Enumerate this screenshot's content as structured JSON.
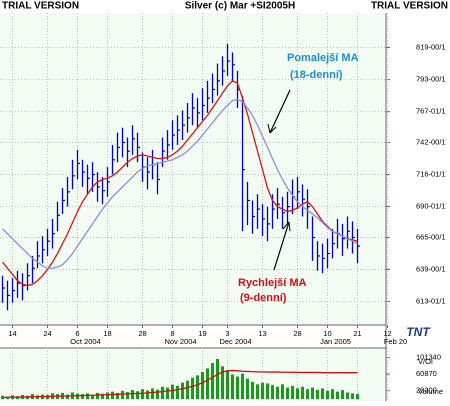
{
  "header": {
    "watermark_left": "TRIAL VERSION",
    "watermark_right": "TRIAL VERSION"
  },
  "chart_data": {
    "type": "ohlc",
    "title": "Silver (c) Mar +SI2005H",
    "color": "#0000cc",
    "grid": true,
    "categories": [
      null,
      null,
      "14",
      null,
      null,
      null,
      null,
      null,
      null,
      "24",
      null,
      null,
      null,
      null,
      null,
      "6",
      null,
      null,
      null,
      null,
      null,
      "18",
      null,
      null,
      null,
      null,
      null,
      null,
      "28",
      null,
      null,
      null,
      null,
      null,
      "8",
      null,
      null,
      null,
      null,
      null,
      "19",
      null,
      null,
      null,
      null,
      "3",
      null,
      null,
      null,
      null,
      null,
      null,
      "13",
      null,
      null,
      null,
      null,
      null,
      null,
      "28",
      null,
      null,
      null,
      null,
      null,
      "10",
      null,
      null,
      null,
      null,
      null,
      "21",
      null,
      null,
      null,
      null,
      null,
      "12"
    ],
    "months": [
      null,
      null,
      null,
      null,
      null,
      null,
      null,
      null,
      null,
      null,
      null,
      null,
      null,
      null,
      null,
      "Oct 2004",
      null,
      null,
      null,
      null,
      null,
      null,
      null,
      null,
      null,
      null,
      null,
      null,
      null,
      null,
      null,
      null,
      null,
      null,
      "Nov 2004",
      null,
      null,
      null,
      null,
      null,
      null,
      null,
      null,
      null,
      null,
      "Dec 2004",
      null,
      null,
      null,
      null,
      null,
      null,
      null,
      null,
      null,
      null,
      null,
      null,
      null,
      null,
      null,
      null,
      null,
      null,
      null,
      "Jan 2005",
      null,
      null,
      null,
      null,
      null,
      null,
      null,
      null,
      null,
      null,
      null,
      "Feb 20"
    ],
    "high": [
      634,
      630,
      632,
      638,
      636,
      644,
      650,
      662,
      666,
      672,
      680,
      694,
      705,
      714,
      728,
      736,
      728,
      724,
      726,
      718,
      714,
      722,
      740,
      750,
      754,
      746,
      756,
      750,
      734,
      730,
      736,
      726,
      746,
      752,
      760,
      764,
      768,
      774,
      782,
      778,
      786,
      792,
      798,
      806,
      812,
      822,
      815,
      800,
      780,
      710,
      695,
      700,
      692,
      690,
      700,
      705,
      698,
      702,
      712,
      714,
      708,
      704,
      682,
      662,
      660,
      664,
      672,
      680,
      676,
      682,
      678,
      672,
      null,
      null,
      null,
      null,
      null,
      null
    ],
    "low": [
      612,
      606,
      612,
      616,
      614,
      622,
      628,
      640,
      644,
      650,
      656,
      670,
      684,
      690,
      704,
      712,
      706,
      700,
      702,
      694,
      692,
      698,
      716,
      726,
      730,
      722,
      732,
      726,
      710,
      704,
      712,
      700,
      722,
      728,
      736,
      740,
      744,
      750,
      756,
      754,
      760,
      766,
      774,
      780,
      788,
      796,
      792,
      770,
      670,
      675,
      668,
      672,
      666,
      662,
      672,
      680,
      672,
      676,
      684,
      688,
      682,
      672,
      646,
      638,
      636,
      640,
      648,
      656,
      650,
      656,
      652,
      644,
      null,
      null,
      null,
      null,
      null,
      null
    ],
    "close": [
      624,
      618,
      622,
      628,
      626,
      634,
      640,
      650,
      655,
      662,
      668,
      683,
      695,
      702,
      715,
      725,
      718,
      713,
      716,
      706,
      703,
      710,
      728,
      738,
      742,
      735,
      745,
      738,
      722,
      718,
      724,
      712,
      735,
      740,
      748,
      752,
      756,
      762,
      770,
      766,
      772,
      778,
      785,
      792,
      800,
      808,
      805,
      785,
      720,
      695,
      682,
      688,
      680,
      676,
      688,
      692,
      685,
      690,
      698,
      702,
      696,
      690,
      665,
      650,
      648,
      652,
      660,
      668,
      664,
      670,
      665,
      658,
      null,
      null,
      null,
      null,
      null,
      null
    ],
    "ylim": [
      594,
      847
    ],
    "yticks": [
      {
        "value": 819,
        "label": "819-00/1"
      },
      {
        "value": 793,
        "label": "793-00/1"
      },
      {
        "value": 767,
        "label": "767-01/1"
      },
      {
        "value": 742,
        "label": "742-00/1"
      },
      {
        "value": 716,
        "label": "716-01/1"
      },
      {
        "value": 690,
        "label": "690-01/1"
      },
      {
        "value": 665,
        "label": "665-00/1"
      },
      {
        "value": 639,
        "label": "639-00/1"
      },
      {
        "value": 613,
        "label": "613-01/1"
      }
    ],
    "series": [
      {
        "kind": "line",
        "color": "#e01010",
        "values": [
          645,
          640,
          635,
          630,
          627,
          626,
          627,
          630,
          634,
          639,
          645,
          652,
          660,
          668,
          677,
          686,
          694,
          700,
          706,
          710,
          712,
          713,
          715,
          718,
          722,
          726,
          729,
          731,
          732,
          731,
          730,
          729,
          729,
          730,
          732,
          735,
          739,
          744,
          749,
          754,
          759,
          764,
          770,
          776,
          782,
          788,
          792,
          790,
          778,
          765,
          750,
          735,
          720,
          705,
          695,
          690,
          688,
          686,
          687,
          689,
          692,
          694,
          690,
          684,
          678,
          674,
          670,
          668,
          666,
          664,
          663,
          662,
          null,
          null,
          null,
          null,
          null,
          null
        ]
      },
      {
        "kind": "line",
        "color": "#8c8ce8",
        "values": [
          672,
          668,
          664,
          660,
          656,
          652,
          648,
          645,
          642,
          640,
          640,
          641,
          643,
          647,
          652,
          658,
          664,
          670,
          676,
          682,
          688,
          693,
          698,
          702,
          706,
          710,
          714,
          718,
          721,
          723,
          724,
          725,
          726,
          727,
          728,
          730,
          732,
          735,
          739,
          743,
          748,
          753,
          758,
          763,
          768,
          772,
          776,
          777,
          775,
          770,
          764,
          756,
          747,
          738,
          729,
          720,
          712,
          705,
          699,
          694,
          690,
          687,
          684,
          681,
          677,
          673,
          670,
          668,
          666,
          664,
          662,
          660,
          null,
          null,
          null,
          null,
          null,
          null
        ]
      },
      {
        "kind": "bar",
        "axis": "y2",
        "color": "#1a9a1a",
        "values": [
          8000,
          6000,
          9000,
          7000,
          10000,
          8000,
          12000,
          9000,
          11000,
          10000,
          14000,
          12000,
          15000,
          11000,
          16000,
          13000,
          12000,
          14000,
          10000,
          15000,
          13000,
          16000,
          18000,
          15000,
          20000,
          17000,
          22000,
          19000,
          24000,
          21000,
          26000,
          23000,
          30000,
          28000,
          35000,
          32000,
          40000,
          45000,
          52000,
          58000,
          66000,
          75000,
          88000,
          98000,
          80000,
          70000,
          60000,
          55000,
          62000,
          50000,
          42000,
          36000,
          40000,
          38000,
          34000,
          30000,
          36000,
          28000,
          32000,
          26000,
          30000,
          24000,
          28000,
          22000,
          26000,
          20000,
          24000,
          18000,
          22000,
          16000,
          14000,
          12000,
          null,
          null,
          null,
          null,
          null,
          null
        ]
      },
      {
        "kind": "line",
        "axis": "y2",
        "color": "#d01010",
        "values": [
          4000,
          4200,
          4400,
          4600,
          4800,
          5000,
          5300,
          5600,
          5900,
          6200,
          6500,
          6800,
          7100,
          7400,
          7700,
          8000,
          8400,
          8800,
          9200,
          9600,
          10000,
          10500,
          11000,
          11500,
          12000,
          12500,
          13000,
          13500,
          14000,
          15000,
          16000,
          17000,
          18000,
          19500,
          21000,
          23000,
          25000,
          28000,
          31000,
          35000,
          40000,
          46000,
          53000,
          60000,
          66000,
          69000,
          70000,
          69000,
          68000,
          67500,
          67000,
          66500,
          66500,
          66000,
          66000,
          66000,
          65500,
          65500,
          65500,
          65000,
          65000,
          65000,
          65000,
          65000,
          64500,
          64500,
          64500,
          64500,
          64500,
          64500,
          64500,
          64500,
          null,
          null,
          null,
          null,
          null,
          null
        ]
      }
    ],
    "y2lim": [
      0,
      120000
    ],
    "y2ticks": [
      101340,
      60870,
      20300
    ],
    "y2_labels": [
      "V/OI",
      "Volume"
    ],
    "annotations": [
      "Pomalejší MA",
      "(18-denní)",
      "Rychlejší MA",
      "(9-denní)"
    ],
    "logo": "TNT"
  }
}
